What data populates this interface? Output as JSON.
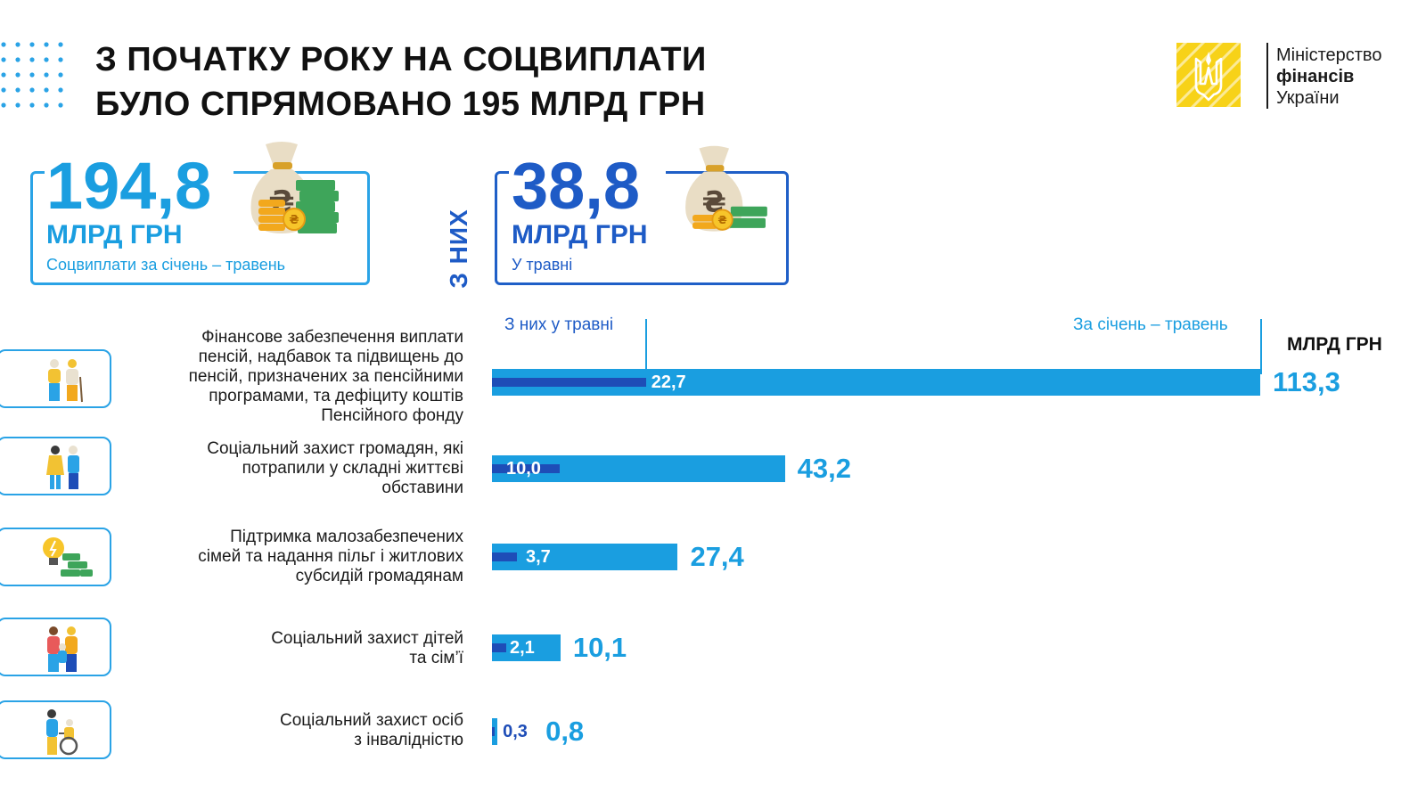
{
  "header": {
    "title_line1": "З ПОЧАТКУ РОКУ НА СОЦВИПЛАТИ",
    "title_line2": "БУЛО СПРЯМОВАНО 195 МЛРД ГРН",
    "logo_line1": "Міністерство",
    "logo_line2": "фінансів",
    "logo_line3": "України"
  },
  "kpis": {
    "total": {
      "value": "194,8",
      "unit": "МЛРД ГРН",
      "caption": "Соцвиплати за січень – травень"
    },
    "of_which_label": "З НИХ",
    "may": {
      "value": "38,8",
      "unit": "МЛРД ГРН",
      "caption": "У травні"
    }
  },
  "chart_data": {
    "type": "bar",
    "orientation": "horizontal",
    "unit_label": "МЛРД ГРН",
    "series": [
      {
        "name": "З них у травні",
        "color": "#1e4db7",
        "values": [
          22.7,
          10.0,
          3.7,
          2.1,
          0.3
        ]
      },
      {
        "name": "За січень – травень",
        "color": "#1a9ee0",
        "values": [
          113.3,
          43.2,
          27.4,
          10.1,
          0.8
        ]
      }
    ],
    "categories": [
      "Фінансове забезпечення виплати пенсій, надбавок та підвищень до пенсій, призначених за пенсійними програмами, та дефіциту коштів Пенсійного фонду",
      "Соціальний захист громадян, які потрапили у складні життєві обставини",
      "Підтримка малозабезпечених сімей та надання пільг і житлових субсидій громадянам",
      "Соціальний захист дітей та сім’ї",
      "Соціальний захист осіб з інвалідністю"
    ],
    "category_lines": [
      [
        "Фінансове забезпечення виплати",
        "пенсій, надбавок та підвищень до",
        "пенсій, призначених за пенсійними",
        "програмами, та дефіциту коштів",
        "Пенсійного фонду"
      ],
      [
        "Соціальний захист громадян, які",
        "потрапили у складні життєві",
        "обставини"
      ],
      [
        "Підтримка малозабезпечених",
        "сімей та надання пільг і житлових",
        "субсидій громадянам"
      ],
      [
        "Соціальний захист дітей",
        "та сім’ї"
      ],
      [
        "Соціальний захист осіб",
        "з інвалідністю"
      ]
    ],
    "labels_may": [
      "22,7",
      "10,0",
      "3,7",
      "2,1",
      "0,3"
    ],
    "labels_total": [
      "113,3",
      "43,2",
      "27,4",
      "10,1",
      "0,8"
    ],
    "icons": [
      "elderly-couple-icon",
      "family-support-icon",
      "lightbulb-money-icon",
      "family-children-icon",
      "wheelchair-icon"
    ],
    "xlim": [
      0,
      113.3
    ]
  }
}
